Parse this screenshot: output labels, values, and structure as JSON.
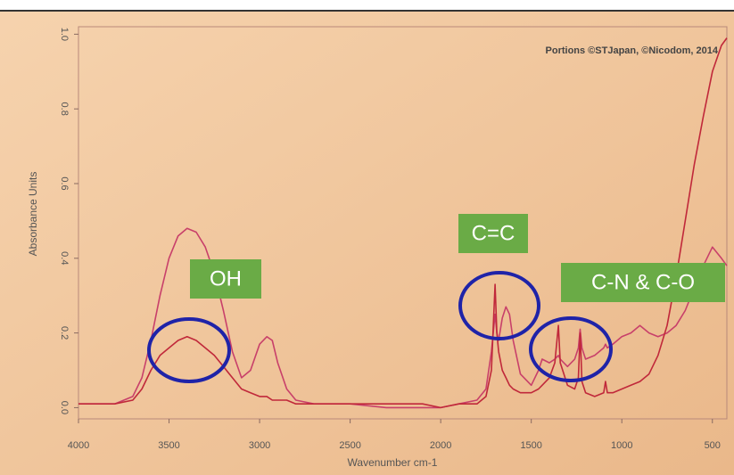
{
  "chart_data": {
    "type": "line",
    "credit": "Portions ©STJapan, ©Nicodom, 2014",
    "x_label": "Wavenumber cm-1",
    "y_label": "Absorbance Units",
    "annotations": [
      "OH",
      "C=C",
      "C-N & C-O"
    ],
    "xlim": [
      4000,
      420
    ],
    "ylim": [
      -0.03,
      1.02
    ],
    "xticks": [
      4000,
      3500,
      3000,
      2500,
      2000,
      1500,
      1000,
      500
    ],
    "yticks": [
      {
        "value": 0,
        "label": "0.0"
      },
      0.2,
      0.4,
      0.6,
      0.8,
      {
        "value": 1,
        "label": "1.0"
      }
    ],
    "x": [
      4000,
      3800,
      3700,
      3650,
      3600,
      3550,
      3500,
      3450,
      3400,
      3350,
      3300,
      3250,
      3200,
      3150,
      3100,
      3050,
      3000,
      2960,
      2930,
      2900,
      2850,
      2800,
      2700,
      2500,
      2300,
      2100,
      2000,
      1900,
      1800,
      1750,
      1720,
      1700,
      1690,
      1680,
      1660,
      1640,
      1620,
      1600,
      1560,
      1500,
      1460,
      1440,
      1400,
      1370,
      1350,
      1340,
      1300,
      1260,
      1240,
      1230,
      1220,
      1200,
      1150,
      1100,
      1090,
      1080,
      1050,
      1000,
      950,
      900,
      850,
      800,
      750,
      700,
      650,
      600,
      550,
      500,
      450,
      420
    ],
    "series": [
      {
        "color": "#c8406a",
        "values": [
          0.01,
          0.01,
          0.03,
          0.08,
          0.18,
          0.3,
          0.4,
          0.46,
          0.48,
          0.47,
          0.43,
          0.36,
          0.26,
          0.15,
          0.08,
          0.1,
          0.17,
          0.19,
          0.18,
          0.12,
          0.05,
          0.02,
          0.01,
          0.01,
          0,
          0,
          0,
          0.01,
          0.02,
          0.05,
          0.15,
          0.25,
          0.2,
          0.18,
          0.24,
          0.27,
          0.25,
          0.18,
          0.09,
          0.06,
          0.1,
          0.13,
          0.12,
          0.13,
          0.14,
          0.13,
          0.11,
          0.13,
          0.16,
          0.21,
          0.16,
          0.13,
          0.14,
          0.16,
          0.17,
          0.16,
          0.17,
          0.19,
          0.2,
          0.22,
          0.2,
          0.19,
          0.2,
          0.22,
          0.26,
          0.32,
          0.38,
          0.43,
          0.4,
          0.38
        ]
      },
      {
        "color": "#c0283a",
        "values": [
          0.01,
          0.01,
          0.02,
          0.05,
          0.1,
          0.14,
          0.16,
          0.18,
          0.19,
          0.18,
          0.16,
          0.14,
          0.11,
          0.08,
          0.05,
          0.04,
          0.03,
          0.03,
          0.02,
          0.02,
          0.02,
          0.01,
          0.01,
          0.01,
          0.01,
          0.01,
          0,
          0.01,
          0.01,
          0.03,
          0.1,
          0.33,
          0.2,
          0.15,
          0.1,
          0.08,
          0.06,
          0.05,
          0.04,
          0.04,
          0.05,
          0.06,
          0.08,
          0.12,
          0.22,
          0.12,
          0.06,
          0.05,
          0.08,
          0.2,
          0.07,
          0.04,
          0.03,
          0.04,
          0.07,
          0.04,
          0.04,
          0.05,
          0.06,
          0.07,
          0.09,
          0.14,
          0.22,
          0.35,
          0.5,
          0.65,
          0.78,
          0.9,
          0.97,
          0.99
        ]
      }
    ]
  }
}
